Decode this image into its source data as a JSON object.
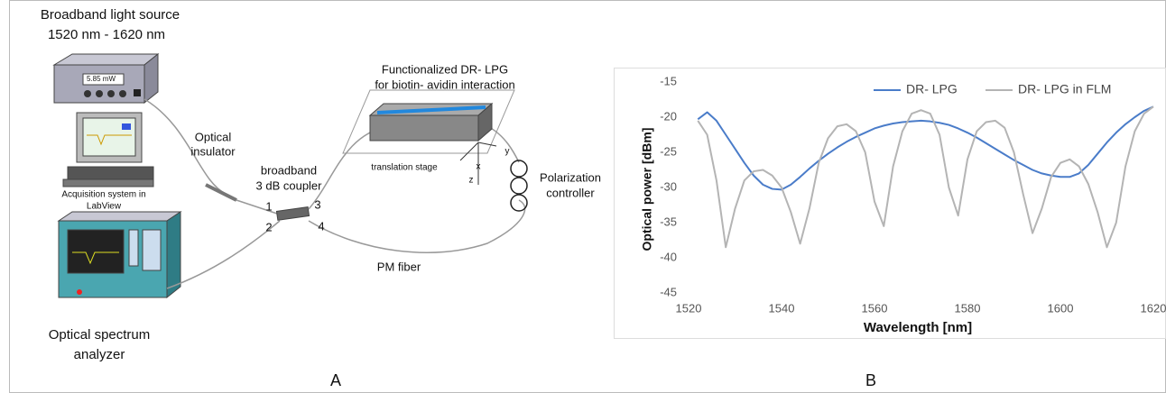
{
  "diagram": {
    "labels": [
      "Broadband light source",
      "1520 nm - 1620 nm",
      "5.85 mW",
      "Acquisition system in",
      "LabView",
      "Optical spectrum",
      "analyzer",
      "Optical",
      "insulator",
      "broadband",
      "3 dB coupler",
      "1",
      "2",
      "3",
      "4",
      "Functionalized DR- LPG",
      "for biotin- avidin interaction",
      "translation stage",
      "x",
      "y",
      "z",
      "Polarization",
      "controller",
      "PM fiber"
    ]
  },
  "panel_labels": [
    "A",
    "B"
  ],
  "chart_data": {
    "type": "line",
    "x_label": "Wavelength [nm]",
    "y_label": "Optical power [dBm]",
    "x": [
      1522,
      1524,
      1526,
      1528,
      1530,
      1532,
      1534,
      1536,
      1538,
      1540,
      1542,
      1544,
      1546,
      1548,
      1550,
      1552,
      1554,
      1556,
      1558,
      1560,
      1562,
      1564,
      1566,
      1568,
      1570,
      1572,
      1574,
      1576,
      1578,
      1580,
      1582,
      1584,
      1586,
      1588,
      1590,
      1592,
      1594,
      1596,
      1598,
      1600,
      1602,
      1604,
      1606,
      1608,
      1610,
      1612,
      1614,
      1616,
      1618,
      1620
    ],
    "series": [
      {
        "name": "DR- LPG",
        "color": "#4a7cc9",
        "values": [
          -20.3,
          -19.3,
          -20.5,
          -22.5,
          -24.5,
          -26.5,
          -28.3,
          -29.6,
          -30.2,
          -30.3,
          -29.6,
          -28.5,
          -27.3,
          -26.2,
          -25.2,
          -24.3,
          -23.5,
          -22.8,
          -22.2,
          -21.6,
          -21.2,
          -20.9,
          -20.7,
          -20.6,
          -20.5,
          -20.6,
          -20.8,
          -21.1,
          -21.6,
          -22.2,
          -22.9,
          -23.7,
          -24.5,
          -25.3,
          -26.1,
          -26.8,
          -27.5,
          -28,
          -28.3,
          -28.5,
          -28.5,
          -28,
          -26.8,
          -25.2,
          -23.6,
          -22.2,
          -21,
          -20,
          -19.1,
          -18.5
        ]
      },
      {
        "name": "DR- LPG in FLM",
        "color": "#b4b4b4",
        "values": [
          -20.5,
          -22.5,
          -29,
          -38.5,
          -33,
          -29,
          -27.7,
          -27.5,
          -28.3,
          -30,
          -33.5,
          -38,
          -33,
          -26.5,
          -23,
          -21.3,
          -21,
          -22,
          -25,
          -32,
          -35.5,
          -27,
          -22,
          -19.5,
          -19,
          -19.5,
          -22.5,
          -30,
          -34,
          -26,
          -22,
          -20.7,
          -20.5,
          -21.5,
          -25,
          -31,
          -36.5,
          -33,
          -28.5,
          -26.5,
          -26,
          -27,
          -29.5,
          -33.5,
          -38.5,
          -35,
          -27,
          -22,
          -19.5,
          -18.5
        ]
      }
    ],
    "xlim": [
      1520,
      1620
    ],
    "xticks": [
      1520,
      1540,
      1560,
      1580,
      1600,
      1620
    ],
    "ylim": [
      -45,
      -15
    ],
    "yticks": [
      -15,
      -20,
      -25,
      -30,
      -35,
      -40,
      -45
    ],
    "grid": false,
    "legend": "top"
  }
}
